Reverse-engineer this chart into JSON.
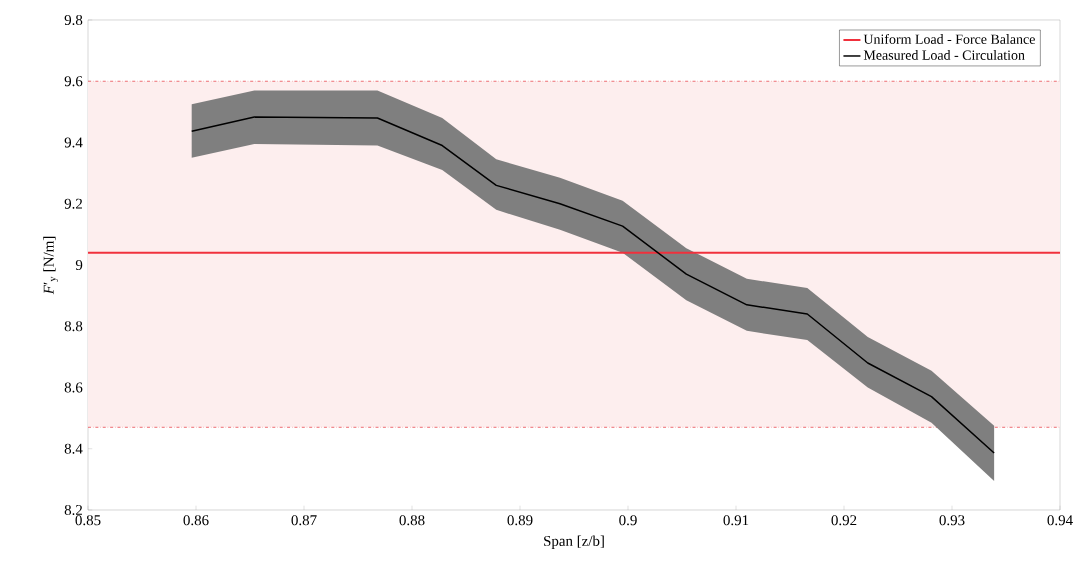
{
  "chart_data": {
    "type": "line",
    "xlabel": "Span [z/b]",
    "ylabel": "*F*′$_{y}$ [N/m]",
    "xlim": [
      0.85,
      0.94
    ],
    "xticks": [
      0.85,
      0.86,
      0.87,
      0.88,
      0.89,
      0.9,
      0.91,
      0.92,
      0.93,
      0.94
    ],
    "ylim": [
      8.2,
      9.8
    ],
    "yticks": [
      8.2,
      8.4,
      8.6,
      8.8,
      9,
      9.2,
      9.4,
      9.6,
      9.8
    ],
    "grid": false,
    "legend": "top right",
    "line_style": "solid",
    "marker": "none",
    "series": [
      {
        "name": "Uniform Load - Force Balance",
        "color": "#f0303c",
        "x": [
          0.85,
          0.94
        ],
        "values": [
          9.04,
          9.04
        ]
      },
      {
        "name": "Measured Load - Circulation",
        "color": "#000000",
        "x": [
          0.8596,
          0.8654,
          0.8768,
          0.8828,
          0.8878,
          0.8937,
          0.8995,
          0.9054,
          0.911,
          0.9166,
          0.9222,
          0.9281,
          0.9339
        ],
        "values": [
          9.437,
          9.483,
          9.48,
          9.39,
          9.26,
          9.2,
          9.127,
          8.97,
          8.87,
          8.84,
          8.68,
          8.57,
          8.386
        ],
        "lower": [
          9.35,
          9.395,
          9.39,
          9.31,
          9.18,
          9.115,
          9.04,
          8.885,
          8.785,
          8.755,
          8.6,
          8.485,
          8.295
        ],
        "upper": [
          9.525,
          9.57,
          9.57,
          9.48,
          9.345,
          9.285,
          9.21,
          9.055,
          8.955,
          8.925,
          8.765,
          8.655,
          8.475
        ]
      }
    ],
    "bands": [
      {
        "axis": "y",
        "from": 8.47,
        "to": 9.6,
        "color": "#fdeeee"
      }
    ],
    "ref_lines": [
      {
        "axis": "y",
        "value": 9.6,
        "color": "#e8474f",
        "line_style": "dashdot"
      },
      {
        "axis": "y",
        "value": 8.47,
        "color": "#e8474f",
        "line_style": "dashdot"
      }
    ]
  }
}
